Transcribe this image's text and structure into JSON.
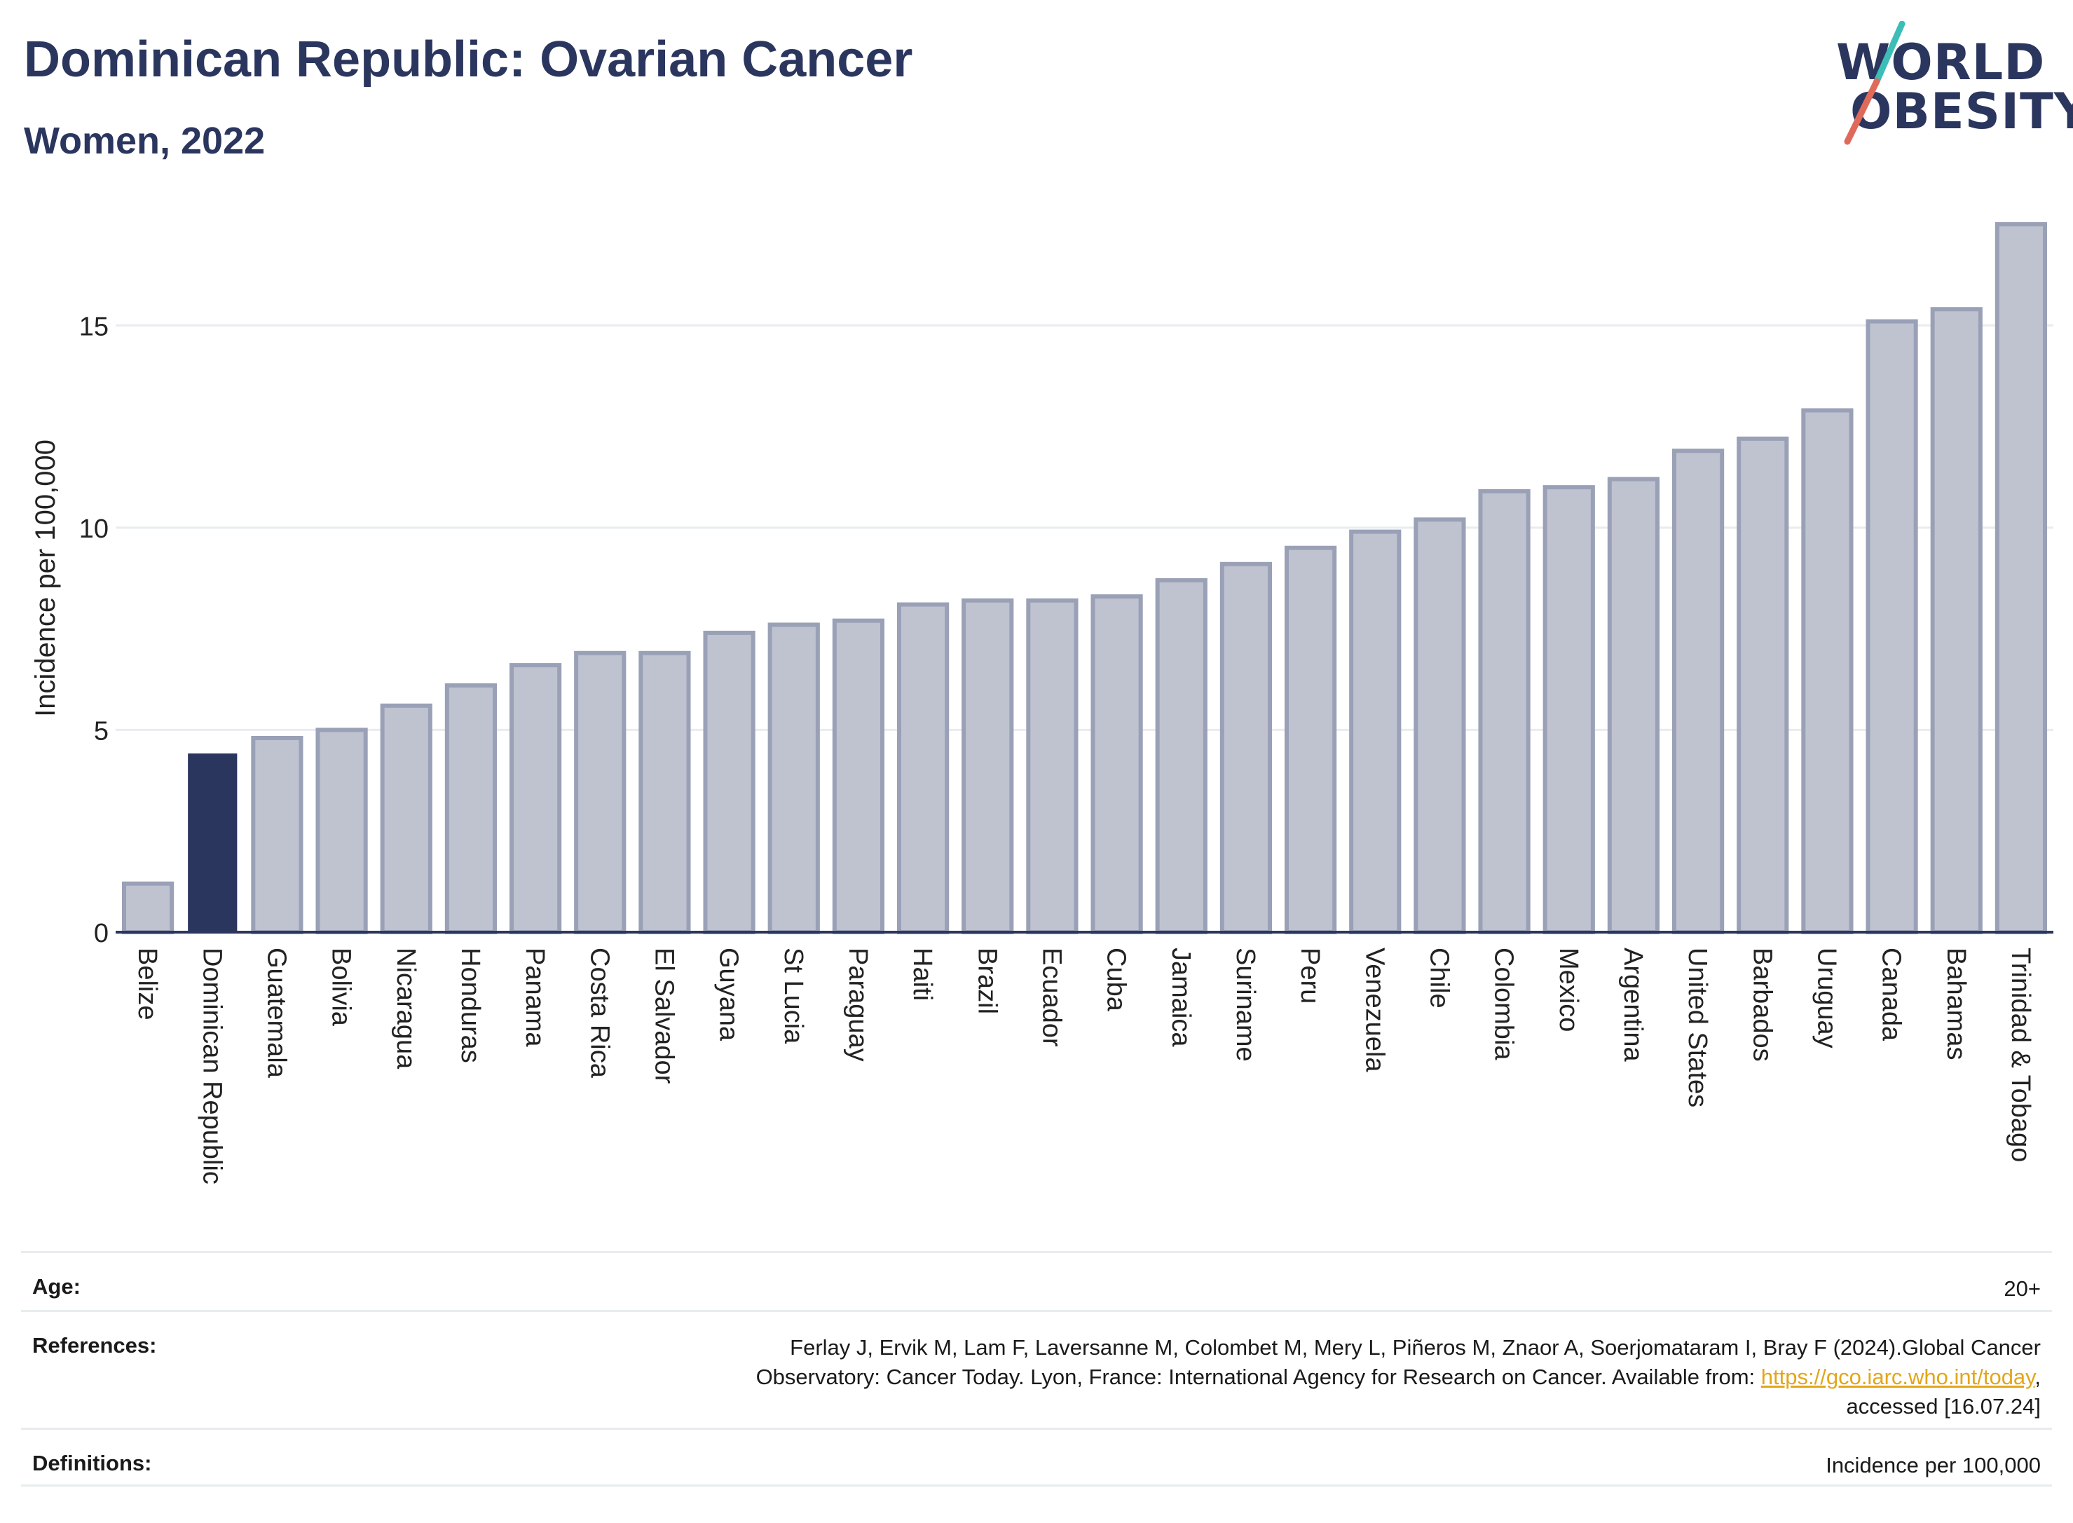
{
  "header": {
    "title": "Dominican Republic: Ovarian Cancer",
    "subtitle": "Women, 2022"
  },
  "logo": {
    "line1": "WORLD",
    "line2": "OBESITY",
    "colors": {
      "text": "#2b365f",
      "slash_top": "#3dbdb7",
      "slash_bottom": "#e06a5a"
    }
  },
  "colors": {
    "highlight_bar": "#2b365f",
    "other_bar_fill": "#bfc3d0",
    "other_bar_stroke": "#9aa0b6",
    "grid": "#e8ecef",
    "axis": "#2b365f"
  },
  "chart_data": {
    "type": "bar",
    "title": "Dominican Republic: Ovarian Cancer",
    "subtitle": "Women, 2022",
    "ylabel": "Incidence per 100,000",
    "xlabel": "",
    "ylim": [
      0,
      17.5
    ],
    "yticks": [
      0,
      5,
      10,
      15
    ],
    "grid": true,
    "highlight": "Dominican Republic",
    "categories": [
      "Belize",
      "Dominican Republic",
      "Guatemala",
      "Bolivia",
      "Nicaragua",
      "Honduras",
      "Panama",
      "Costa Rica",
      "El Salvador",
      "Guyana",
      "St Lucia",
      "Paraguay",
      "Haiti",
      "Brazil",
      "Ecuador",
      "Cuba",
      "Jamaica",
      "Suriname",
      "Peru",
      "Venezuela",
      "Chile",
      "Colombia",
      "Mexico",
      "Argentina",
      "United States",
      "Barbados",
      "Uruguay",
      "Canada",
      "Bahamas",
      "Trinidad & Tobago"
    ],
    "values": [
      1.2,
      4.4,
      4.8,
      5.0,
      5.6,
      6.1,
      6.6,
      6.9,
      6.9,
      7.4,
      7.6,
      7.7,
      8.1,
      8.2,
      8.2,
      8.3,
      8.7,
      9.1,
      9.5,
      9.9,
      10.2,
      10.9,
      11.0,
      11.2,
      11.9,
      12.2,
      12.9,
      15.1,
      15.4,
      17.5
    ]
  },
  "footer": {
    "age_label": "Age:",
    "age_value": "20+",
    "references_label": "References:",
    "references_line1": "Ferlay J, Ervik M, Lam F, Laversanne M, Colombet M, Mery L, Piñeros M, Znaor A, Soerjomataram I, Bray F (2024).Global Cancer",
    "references_line2_pre": "Observatory: Cancer Today. Lyon, France: International Agency for Research on Cancer. Available from: ",
    "references_link": "https://gco.iarc.who.int/today",
    "references_line2_post": ",",
    "references_line3": "accessed [16.07.24]",
    "definitions_label": "Definitions:",
    "definitions_value": "Incidence per 100,000"
  }
}
